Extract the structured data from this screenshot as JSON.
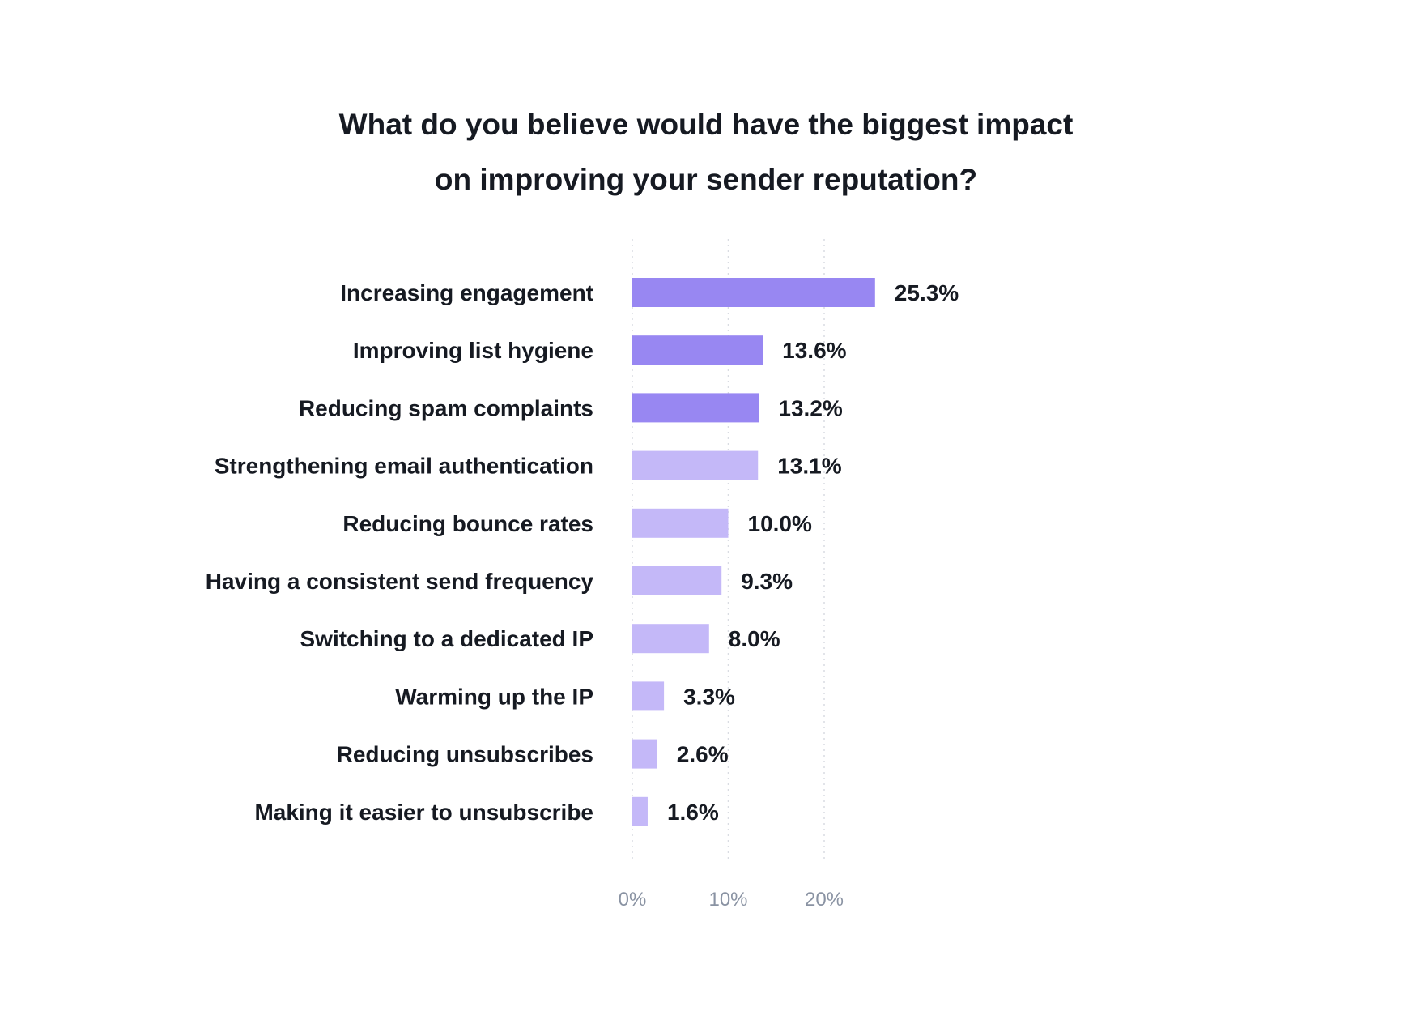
{
  "chart_data": {
    "type": "bar",
    "orientation": "horizontal",
    "title_line1": "What do you believe would have the biggest impact",
    "title_line2": "on improving your sender reputation?",
    "categories": [
      "Increasing engagement",
      "Improving list hygiene",
      "Reducing spam complaints",
      "Strengthening email authentication",
      "Reducing bounce rates",
      "Having a consistent send frequency",
      "Switching to a dedicated IP",
      "Warming up the IP",
      "Reducing unsubscribes",
      "Making it easier to unsubscribe"
    ],
    "values": [
      25.3,
      13.6,
      13.2,
      13.1,
      10.0,
      9.3,
      8.0,
      3.3,
      2.6,
      1.6
    ],
    "value_labels": [
      "25.3%",
      "13.6%",
      "13.2%",
      "13.1%",
      "10.0%",
      "9.3%",
      "8.0%",
      "3.3%",
      "2.6%",
      "1.6%"
    ],
    "highlighted_count": 3,
    "xticks": [
      0,
      10,
      20
    ],
    "xtick_labels": [
      "0%",
      "10%",
      "20%"
    ],
    "xlim": [
      0,
      30
    ],
    "grid": "vertical-dotted",
    "colors": {
      "highlight": "#9887f2",
      "normal": "#c4b8f8",
      "text": "#161a22",
      "tick": "#8a93a3",
      "grid": "#d9dce2"
    }
  }
}
